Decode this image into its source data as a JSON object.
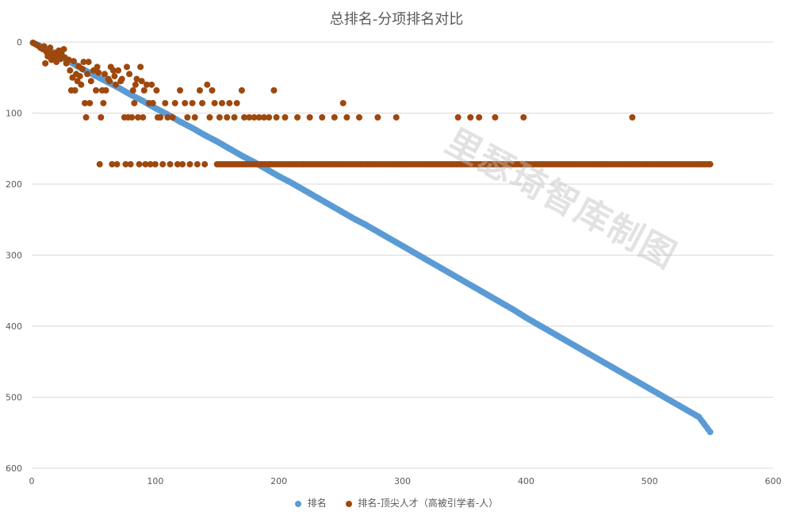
{
  "chart_data": {
    "type": "scatter",
    "title": "总排名-分项排名对比",
    "watermark": "里瑟琦智库制图",
    "xlabel": "",
    "ylabel": "",
    "xlim": [
      0,
      600
    ],
    "ylim": [
      0,
      600
    ],
    "y_reversed": true,
    "x_ticks": [
      "0",
      "100",
      "200",
      "300",
      "400",
      "500",
      "600"
    ],
    "y_ticks": [
      "0",
      "100",
      "200",
      "300",
      "400",
      "500",
      "600"
    ],
    "grid": true,
    "legend_position": "bottom",
    "series": [
      {
        "name": "排名",
        "color": "#5b9bd5",
        "points": [
          [
            1,
            1
          ],
          [
            10,
            8
          ],
          [
            20,
            18
          ],
          [
            30,
            27
          ],
          [
            40,
            37
          ],
          [
            50,
            46
          ],
          [
            60,
            55
          ],
          [
            70,
            64
          ],
          [
            80,
            74
          ],
          [
            90,
            83
          ],
          [
            100,
            93
          ],
          [
            110,
            102
          ],
          [
            120,
            112
          ],
          [
            130,
            121
          ],
          [
            140,
            131
          ],
          [
            150,
            140
          ],
          [
            160,
            150
          ],
          [
            170,
            160
          ],
          [
            180,
            169
          ],
          [
            190,
            179
          ],
          [
            200,
            189
          ],
          [
            210,
            198
          ],
          [
            220,
            208
          ],
          [
            230,
            218
          ],
          [
            240,
            228
          ],
          [
            250,
            238
          ],
          [
            260,
            248
          ],
          [
            270,
            257
          ],
          [
            280,
            267
          ],
          [
            290,
            277
          ],
          [
            300,
            287
          ],
          [
            310,
            297
          ],
          [
            320,
            307
          ],
          [
            330,
            317
          ],
          [
            340,
            327
          ],
          [
            350,
            337
          ],
          [
            360,
            347
          ],
          [
            370,
            357
          ],
          [
            380,
            367
          ],
          [
            390,
            377
          ],
          [
            400,
            388
          ],
          [
            410,
            398
          ],
          [
            420,
            408
          ],
          [
            430,
            418
          ],
          [
            440,
            428
          ],
          [
            450,
            438
          ],
          [
            460,
            448
          ],
          [
            470,
            458
          ],
          [
            480,
            468
          ],
          [
            490,
            478
          ],
          [
            500,
            488
          ],
          [
            510,
            498
          ],
          [
            520,
            508
          ],
          [
            530,
            518
          ],
          [
            540,
            528
          ],
          [
            549,
            549
          ]
        ]
      },
      {
        "name": "排名-顶尖人才（高被引学者-人）",
        "color": "#9e480e",
        "points": [
          [
            1,
            1
          ],
          [
            3,
            3
          ],
          [
            5,
            5
          ],
          [
            7,
            8
          ],
          [
            9,
            10
          ],
          [
            10,
            6
          ],
          [
            11,
            30
          ],
          [
            12,
            14
          ],
          [
            13,
            20
          ],
          [
            14,
            12
          ],
          [
            15,
            8
          ],
          [
            16,
            25
          ],
          [
            17,
            17
          ],
          [
            18,
            22
          ],
          [
            19,
            15
          ],
          [
            20,
            28
          ],
          [
            21,
            19
          ],
          [
            22,
            12
          ],
          [
            23,
            24
          ],
          [
            24,
            16
          ],
          [
            25,
            20
          ],
          [
            26,
            10
          ],
          [
            27,
            22
          ],
          [
            28,
            30
          ],
          [
            30,
            25
          ],
          [
            31,
            40
          ],
          [
            32,
            68
          ],
          [
            33,
            50
          ],
          [
            34,
            27
          ],
          [
            35,
            68
          ],
          [
            36,
            45
          ],
          [
            37,
            55
          ],
          [
            38,
            34
          ],
          [
            39,
            48
          ],
          [
            40,
            60
          ],
          [
            41,
            38
          ],
          [
            42,
            28
          ],
          [
            43,
            86
          ],
          [
            44,
            106
          ],
          [
            45,
            45
          ],
          [
            46,
            28
          ],
          [
            47,
            86
          ],
          [
            48,
            55
          ],
          [
            50,
            40
          ],
          [
            52,
            68
          ],
          [
            53,
            35
          ],
          [
            54,
            43
          ],
          [
            55,
            172
          ],
          [
            56,
            106
          ],
          [
            57,
            68
          ],
          [
            58,
            86
          ],
          [
            59,
            45
          ],
          [
            60,
            68
          ],
          [
            62,
            52
          ],
          [
            63,
            55
          ],
          [
            64,
            35
          ],
          [
            65,
            172
          ],
          [
            66,
            40
          ],
          [
            67,
            48
          ],
          [
            68,
            60
          ],
          [
            69,
            172
          ],
          [
            70,
            40
          ],
          [
            72,
            55
          ],
          [
            73,
            52
          ],
          [
            75,
            106
          ],
          [
            76,
            172
          ],
          [
            77,
            35
          ],
          [
            78,
            106
          ],
          [
            79,
            45
          ],
          [
            80,
            172
          ],
          [
            81,
            106
          ],
          [
            82,
            68
          ],
          [
            83,
            86
          ],
          [
            84,
            60
          ],
          [
            85,
            52
          ],
          [
            86,
            106
          ],
          [
            87,
            172
          ],
          [
            88,
            35
          ],
          [
            89,
            55
          ],
          [
            90,
            106
          ],
          [
            91,
            68
          ],
          [
            92,
            172
          ],
          [
            93,
            60
          ],
          [
            95,
            86
          ],
          [
            96,
            172
          ],
          [
            97,
            60
          ],
          [
            98,
            86
          ],
          [
            100,
            172
          ],
          [
            101,
            68
          ],
          [
            102,
            106
          ],
          [
            104,
            106
          ],
          [
            106,
            172
          ],
          [
            108,
            86
          ],
          [
            110,
            106
          ],
          [
            112,
            172
          ],
          [
            114,
            106
          ],
          [
            116,
            86
          ],
          [
            118,
            172
          ],
          [
            120,
            68
          ],
          [
            122,
            172
          ],
          [
            124,
            86
          ],
          [
            126,
            106
          ],
          [
            128,
            172
          ],
          [
            130,
            86
          ],
          [
            132,
            106
          ],
          [
            134,
            172
          ],
          [
            136,
            68
          ],
          [
            138,
            86
          ],
          [
            140,
            172
          ],
          [
            142,
            60
          ],
          [
            144,
            106
          ],
          [
            146,
            68
          ],
          [
            148,
            86
          ],
          [
            150,
            172
          ],
          [
            152,
            106
          ],
          [
            154,
            86
          ],
          [
            156,
            172
          ],
          [
            158,
            106
          ],
          [
            160,
            86
          ],
          [
            162,
            172
          ],
          [
            164,
            106
          ],
          [
            166,
            86
          ],
          [
            168,
            172
          ],
          [
            170,
            68
          ],
          [
            172,
            106
          ],
          [
            174,
            172
          ],
          [
            176,
            106
          ],
          [
            178,
            172
          ],
          [
            180,
            106
          ],
          [
            182,
            172
          ],
          [
            184,
            106
          ],
          [
            186,
            172
          ],
          [
            188,
            106
          ],
          [
            190,
            172
          ],
          [
            192,
            106
          ],
          [
            194,
            172
          ],
          [
            196,
            68
          ],
          [
            198,
            106
          ],
          [
            200,
            172
          ],
          [
            205,
            106
          ],
          [
            210,
            172
          ],
          [
            215,
            106
          ],
          [
            220,
            172
          ],
          [
            225,
            106
          ],
          [
            230,
            172
          ],
          [
            235,
            106
          ],
          [
            240,
            172
          ],
          [
            245,
            106
          ],
          [
            250,
            172
          ],
          [
            252,
            86
          ],
          [
            255,
            106
          ],
          [
            260,
            172
          ],
          [
            265,
            106
          ],
          [
            270,
            172
          ],
          [
            280,
            106
          ],
          [
            290,
            172
          ],
          [
            295,
            106
          ],
          [
            300,
            172
          ],
          [
            310,
            172
          ],
          [
            320,
            172
          ],
          [
            330,
            172
          ],
          [
            340,
            172
          ],
          [
            345,
            106
          ],
          [
            350,
            172
          ],
          [
            355,
            106
          ],
          [
            360,
            172
          ],
          [
            362,
            106
          ],
          [
            370,
            172
          ],
          [
            375,
            106
          ],
          [
            380,
            172
          ],
          [
            390,
            172
          ],
          [
            398,
            106
          ],
          [
            400,
            172
          ],
          [
            410,
            172
          ],
          [
            420,
            172
          ],
          [
            430,
            172
          ],
          [
            440,
            172
          ],
          [
            450,
            172
          ],
          [
            460,
            172
          ],
          [
            470,
            172
          ],
          [
            480,
            172
          ],
          [
            486,
            106
          ],
          [
            490,
            172
          ],
          [
            500,
            172
          ],
          [
            510,
            172
          ],
          [
            520,
            172
          ],
          [
            530,
            172
          ],
          [
            540,
            172
          ],
          [
            549,
            172
          ]
        ]
      }
    ]
  }
}
